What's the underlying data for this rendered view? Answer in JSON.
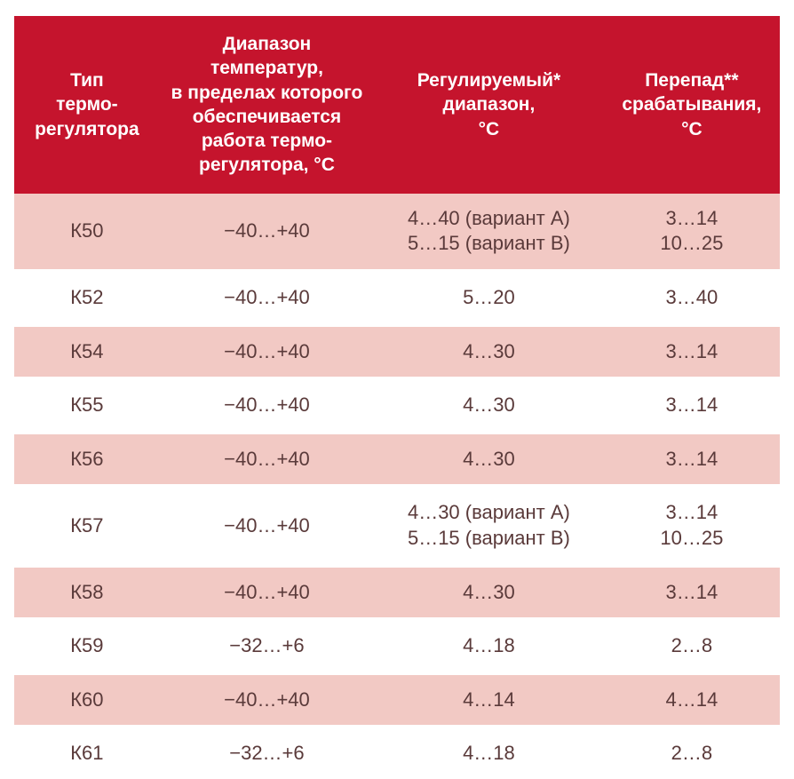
{
  "table": {
    "type": "table",
    "header_bg": "#c5142d",
    "header_color": "#ffffff",
    "row_alt_bg": "#f2c9c4",
    "row_bg": "#ffffff",
    "row_gap_bg": "#ffffff",
    "text_color": "#5a3a3a",
    "header_fontsize": 21,
    "cell_fontsize": 22,
    "col_widths_pct": [
      19,
      28,
      30,
      23
    ],
    "columns": [
      "Тип\nтермо-\nрегулятора",
      "Диапазон\nтемператур,\nв пределах которого\nобеспечивается\nработа термо-\nрегулятора, °С",
      "Регулируемый*\nдиапазон,\n°С",
      "Перепад**\nсрабатывания,\n°С"
    ],
    "rows": [
      [
        "К50",
        "−40…+40",
        "4…40 (вариант А)\n5…15 (вариант В)",
        "3…14\n10…25"
      ],
      [
        "К52",
        "−40…+40",
        "5…20",
        "3…40"
      ],
      [
        "К54",
        "−40…+40",
        "4…30",
        "3…14"
      ],
      [
        "К55",
        "−40…+40",
        "4…30",
        "3…14"
      ],
      [
        "К56",
        "−40…+40",
        "4…30",
        "3…14"
      ],
      [
        "К57",
        "−40…+40",
        "4…30 (вариант А)\n5…15 (вариант В)",
        "3…14\n10…25"
      ],
      [
        "К58",
        "−40…+40",
        "4…30",
        "3…14"
      ],
      [
        "К59",
        "−32…+6",
        "4…18",
        "2…8"
      ],
      [
        "К60",
        "−40…+40",
        "4…14",
        "4…14"
      ],
      [
        "К61",
        "−32…+6",
        "4…18",
        "2…8"
      ]
    ]
  }
}
